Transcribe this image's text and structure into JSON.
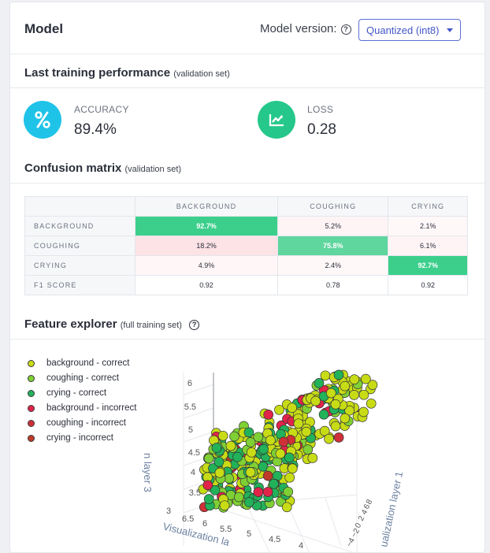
{
  "header": {
    "title": "Model",
    "version_label": "Model version:",
    "version_value": "Quantized (int8)"
  },
  "performance": {
    "title": "Last training performance",
    "subtitle": "(validation set)",
    "accuracy": {
      "label": "ACCURACY",
      "value": "89.4%",
      "icon": "percent-icon",
      "color": "#1fc3e7"
    },
    "loss": {
      "label": "LOSS",
      "value": "0.28",
      "icon": "trend-chart-icon",
      "color": "#25c88a"
    }
  },
  "confusion": {
    "title": "Confusion matrix",
    "subtitle": "(validation set)",
    "columns": [
      "BACKGROUND",
      "COUGHING",
      "CRYING"
    ],
    "rows": [
      {
        "label": "BACKGROUND",
        "cells": [
          "92.7%",
          "5.2%",
          "2.1%"
        ]
      },
      {
        "label": "COUGHING",
        "cells": [
          "18.2%",
          "75.8%",
          "6.1%"
        ]
      },
      {
        "label": "CRYING",
        "cells": [
          "4.9%",
          "2.4%",
          "92.7%"
        ]
      }
    ],
    "f1": {
      "label": "F1 SCORE",
      "cells": [
        "0.92",
        "0.78",
        "0.92"
      ]
    }
  },
  "explorer": {
    "title": "Feature explorer",
    "subtitle": "(full training set)",
    "legend": [
      {
        "label": "background - correct",
        "color": "#c8dc16"
      },
      {
        "label": "coughing - correct",
        "color": "#7fd034"
      },
      {
        "label": "crying - correct",
        "color": "#22b25a"
      },
      {
        "label": "background - incorrect",
        "color": "#e0244a"
      },
      {
        "label": "coughing - incorrect",
        "color": "#cf3038"
      },
      {
        "label": "crying - incorrect",
        "color": "#bf3a2a"
      }
    ],
    "axes": {
      "z_ticks": [
        "6",
        "5.5",
        "5",
        "4.5",
        "4",
        "3.5"
      ],
      "x_ticks": [
        "3",
        "6.5",
        "6",
        "5.5",
        "5",
        "4.5",
        "4"
      ],
      "z_title": "n layer 3",
      "x_title": "Visualization la",
      "y_title": "ualization layer 1",
      "y_ticks": [
        "−4",
        "−2",
        "0",
        "2",
        "4",
        "6",
        "8"
      ]
    }
  }
}
